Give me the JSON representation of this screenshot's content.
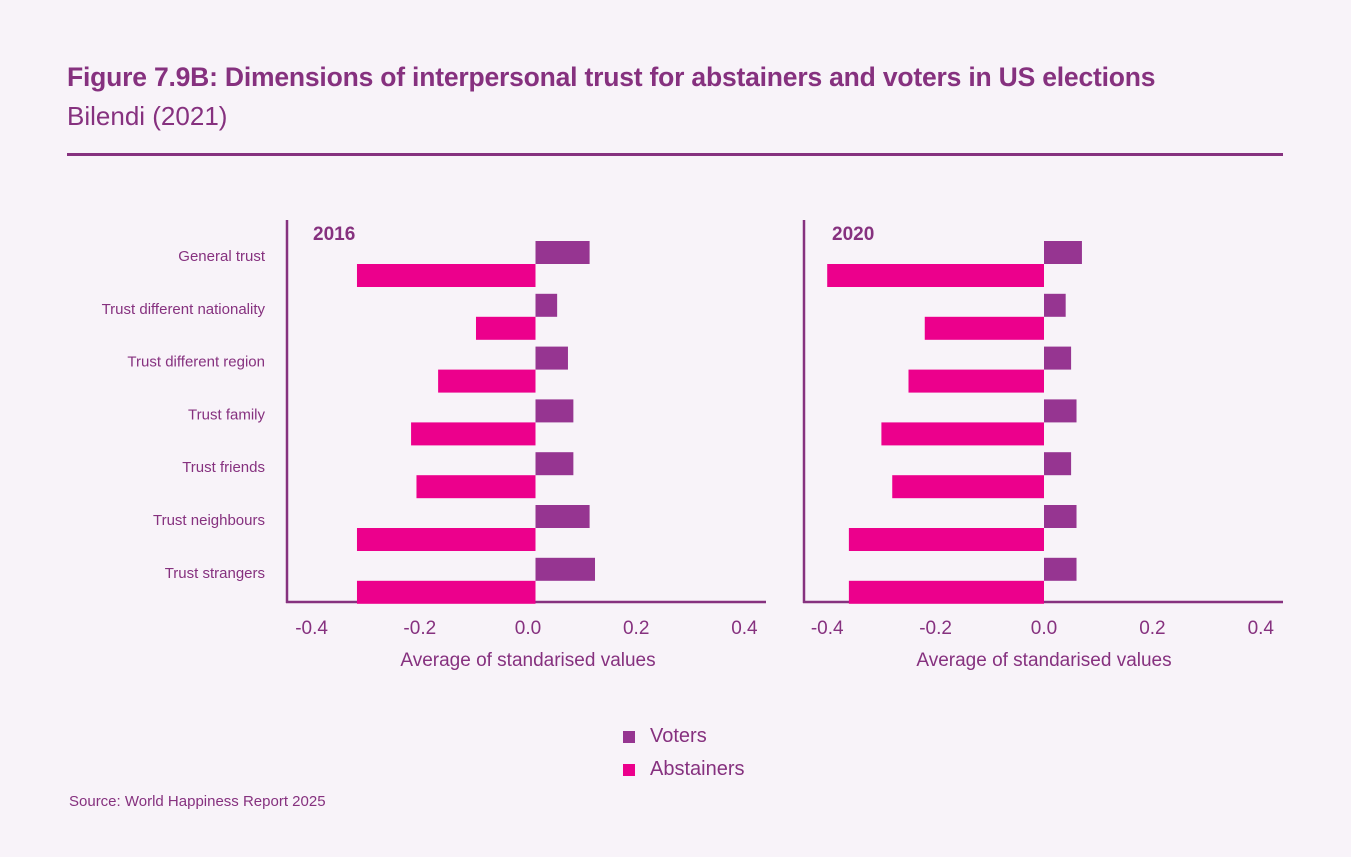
{
  "header": {
    "title": "Figure 7.9B: Dimensions of interpersonal trust for abstainers and voters in US elections",
    "subtitle": "Bilendi (2021)"
  },
  "colors": {
    "voters": "#963591",
    "abstainers": "#ec008c",
    "text": "#86317f",
    "axis": "#86317f",
    "background": "#f8f3f9"
  },
  "legend": {
    "items": [
      {
        "label": "Voters",
        "color": "#963591"
      },
      {
        "label": "Abstainers",
        "color": "#ec008c"
      }
    ]
  },
  "source": "Source: World Happiness Report 2025",
  "chart_data": [
    {
      "type": "bar",
      "orientation": "horizontal",
      "title": "2016",
      "categories": [
        "General trust",
        "Trust different nationality",
        "Trust different region",
        "Trust family",
        "Trust friends",
        "Trust neighbours",
        "Trust strangers"
      ],
      "series": [
        {
          "name": "Voters",
          "values": [
            0.1,
            0.04,
            0.06,
            0.07,
            0.07,
            0.1,
            0.11
          ]
        },
        {
          "name": "Abstainers",
          "values": [
            -0.33,
            -0.11,
            -0.18,
            -0.23,
            -0.22,
            -0.33,
            -0.33
          ]
        }
      ],
      "xlabel": "Average of standarised values",
      "ylabel": "",
      "xlim": [
        -0.45,
        0.44
      ],
      "xticks": [
        -0.4,
        -0.2,
        0.0,
        0.2,
        0.4
      ],
      "xtick_labels": [
        "-0.4",
        "-0.2",
        "0.0",
        "0.2",
        "0.4"
      ],
      "grid": false,
      "legend_position": "bottom-center"
    },
    {
      "type": "bar",
      "orientation": "horizontal",
      "title": "2020",
      "categories": [
        "General trust",
        "Trust different nationality",
        "Trust different region",
        "Trust family",
        "Trust friends",
        "Trust neighbours",
        "Trust strangers"
      ],
      "series": [
        {
          "name": "Voters",
          "values": [
            0.07,
            0.04,
            0.05,
            0.06,
            0.05,
            0.06,
            0.06
          ]
        },
        {
          "name": "Abstainers",
          "values": [
            -0.4,
            -0.22,
            -0.25,
            -0.3,
            -0.28,
            -0.36,
            -0.36
          ]
        }
      ],
      "xlabel": "Average of standarised values",
      "ylabel": "",
      "xlim": [
        -0.44,
        0.44
      ],
      "xticks": [
        -0.4,
        -0.2,
        0.0,
        0.2,
        0.4
      ],
      "xtick_labels": [
        "-0.4",
        "-0.2",
        "0.0",
        "0.2",
        "0.4"
      ],
      "grid": false,
      "legend_position": "bottom-center"
    }
  ]
}
